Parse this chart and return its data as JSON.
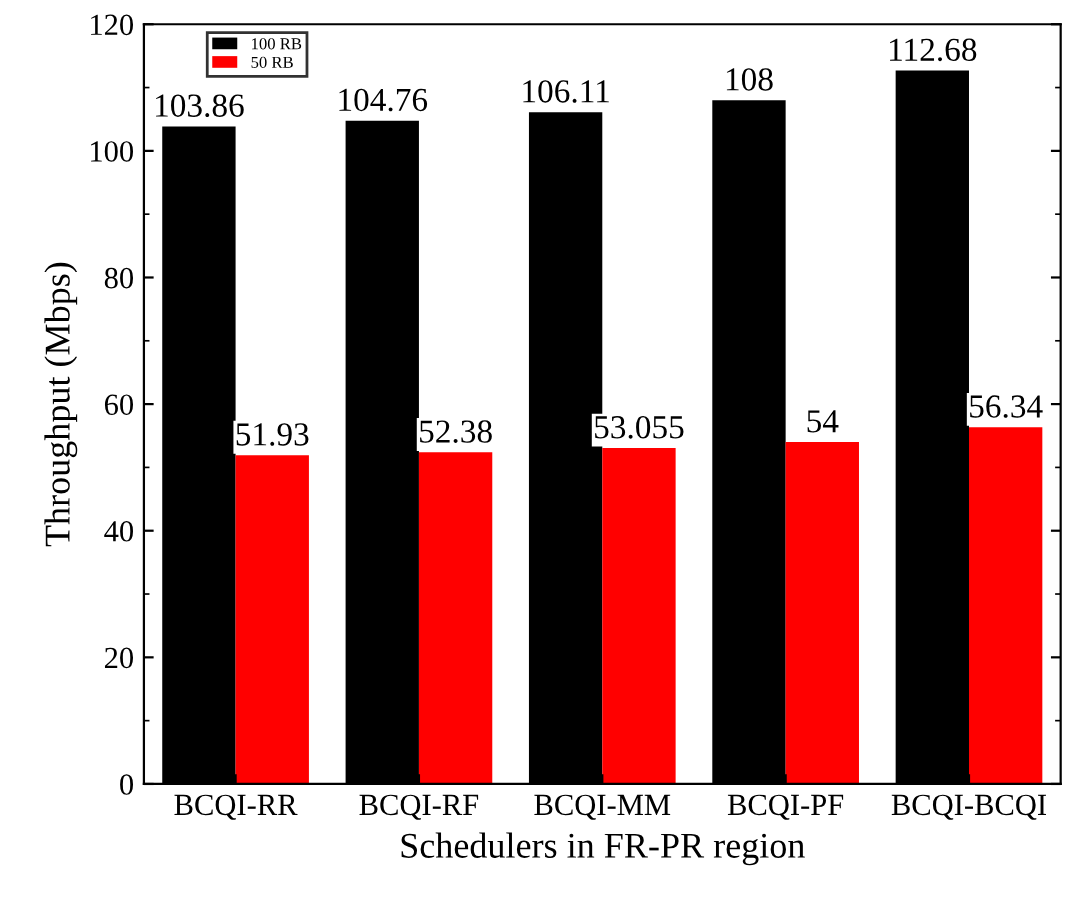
{
  "chart_data": {
    "type": "bar",
    "xlabel": "Schedulers in FR-PR region",
    "ylabel": "Throughput (Mbps)",
    "categories": [
      "BCQI-RR",
      "BCQI-RF",
      "BCQI-MM",
      "BCQI-PF",
      "BCQI-BCQI"
    ],
    "series": [
      {
        "name": "100 RB",
        "color": "#000000",
        "values": [
          103.86,
          104.76,
          106.11,
          108,
          112.68
        ]
      },
      {
        "name": "50 RB",
        "color": "#ff0000",
        "values": [
          51.93,
          52.38,
          53.055,
          54,
          56.34
        ]
      }
    ],
    "ylim": [
      0,
      120
    ],
    "yticks": [
      0,
      20,
      40,
      60,
      80,
      100,
      120
    ],
    "data_labels": true,
    "legend": "top left",
    "grid": false
  }
}
